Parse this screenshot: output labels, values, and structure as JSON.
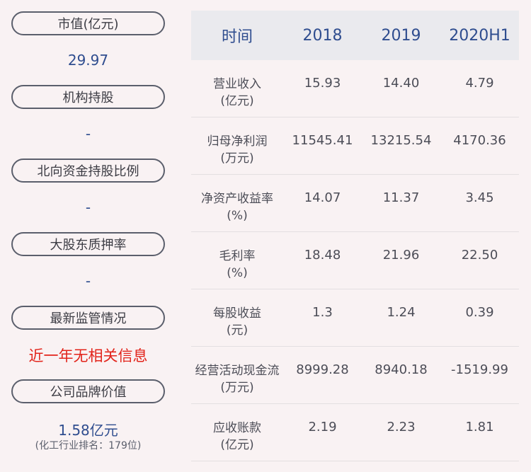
{
  "left": {
    "market_value_label": "市值(亿元)",
    "market_value": "29.97",
    "institution_label": "机构持股",
    "institution_value": "-",
    "northbound_label": "北向资金持股比例",
    "northbound_value": "-",
    "pledge_label": "大股东质押率",
    "pledge_value": "-",
    "regulation_label": "最新监管情况",
    "regulation_value": "近一年无相关信息",
    "brand_label": "公司品牌价值",
    "brand_value": "1.58亿元",
    "brand_note": "(化工行业排名：179位)"
  },
  "table": {
    "headers": [
      "时间",
      "2018",
      "2019",
      "2020H1"
    ],
    "rows": [
      {
        "label1": "营业收入",
        "label2": "(亿元)",
        "v": [
          "15.93",
          "14.40",
          "4.79"
        ]
      },
      {
        "label1": "归母净利润",
        "label2": "(万元)",
        "v": [
          "11545.41",
          "13215.54",
          "4170.36"
        ]
      },
      {
        "label1": "净资产收益率",
        "label2": "(%)",
        "v": [
          "14.07",
          "11.37",
          "3.45"
        ]
      },
      {
        "label1": "毛利率",
        "label2": "(%)",
        "v": [
          "18.48",
          "21.96",
          "22.50"
        ]
      },
      {
        "label1": "每股收益",
        "label2": "(元)",
        "v": [
          "1.3",
          "1.24",
          "0.39"
        ]
      },
      {
        "label1": "经营活动现金流",
        "label2": "(万元)",
        "v": [
          "8999.28",
          "8940.18",
          "-1519.99"
        ]
      },
      {
        "label1": "应收账款",
        "label2": "(亿元)",
        "v": [
          "2.19",
          "2.23",
          "1.81"
        ]
      }
    ]
  }
}
